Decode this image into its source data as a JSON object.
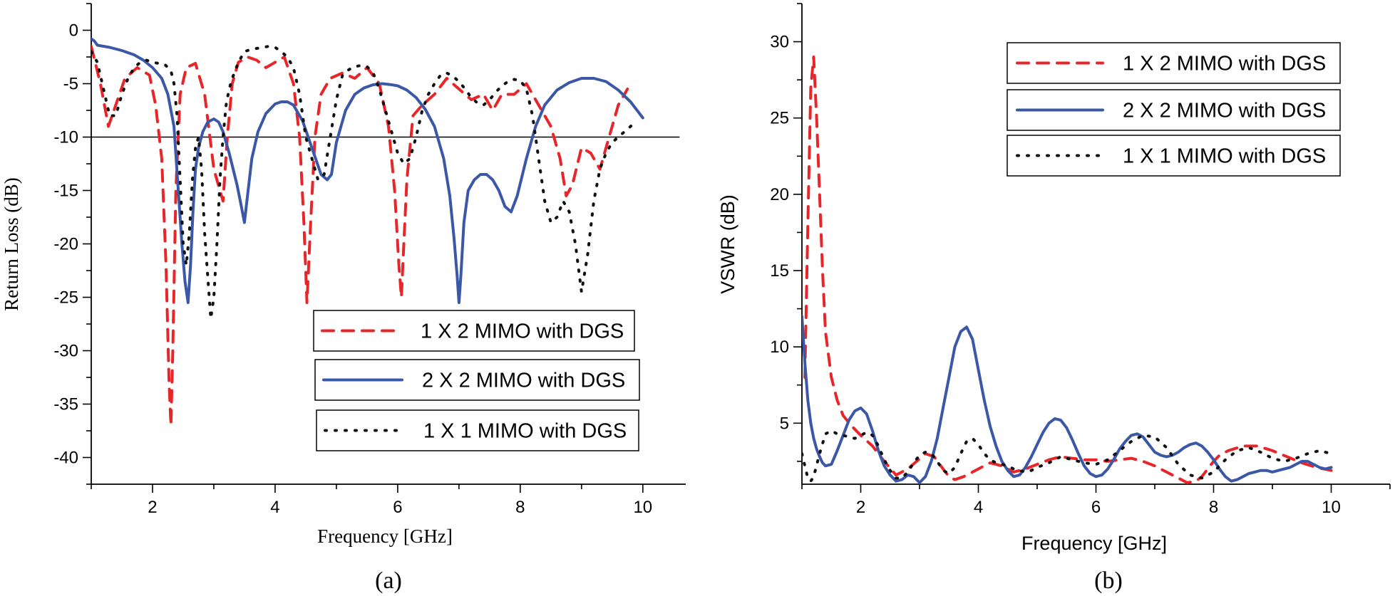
{
  "chart_data": [
    {
      "type": "line",
      "panel_label": "(a)",
      "title": "",
      "xlabel": "Frequency [GHz]",
      "ylabel": "Return Loss (dB)",
      "xlim": [
        1,
        10.7
      ],
      "ylim": [
        -42.5,
        2.5
      ],
      "xticks": [
        2,
        4,
        6,
        8,
        10
      ],
      "yticks": [
        0,
        -5,
        -10,
        -15,
        -20,
        -25,
        -30,
        -35,
        -40
      ],
      "xtick_labels": [
        "2",
        "4",
        "6",
        "8",
        "10"
      ],
      "ytick_labels": [
        "0",
        "-5",
        "-10",
        "-15",
        "-20",
        "-25",
        "-30",
        "-35",
        "-40"
      ],
      "grid": false,
      "legend_position": "bottom-right",
      "reference_line": {
        "y": -10,
        "x": [
          1,
          10.6
        ]
      },
      "series": [
        {
          "name": "1 X 2 MIMO with DGS",
          "style": "dashed",
          "color": "#e8262a",
          "x": [
            1.0,
            1.15,
            1.28,
            1.4,
            1.55,
            1.75,
            1.95,
            2.05,
            2.15,
            2.22,
            2.27,
            2.3,
            2.33,
            2.38,
            2.45,
            2.55,
            2.7,
            2.85,
            3.0,
            3.15,
            3.22,
            3.3,
            3.4,
            3.55,
            3.7,
            3.85,
            4.0,
            4.15,
            4.3,
            4.4,
            4.47,
            4.52,
            4.58,
            4.65,
            4.75,
            4.9,
            5.1,
            5.3,
            5.5,
            5.7,
            5.85,
            5.95,
            6.02,
            6.06,
            6.1,
            6.15,
            6.25,
            6.4,
            6.6,
            6.8,
            7.0,
            7.2,
            7.4,
            7.55,
            7.7,
            7.9,
            8.1,
            8.3,
            8.5,
            8.65,
            8.75,
            8.85,
            9.0,
            9.15,
            9.3,
            9.45,
            9.6,
            9.75
          ],
          "y": [
            -1.5,
            -5,
            -9,
            -7,
            -4.5,
            -3.5,
            -4.2,
            -7,
            -12,
            -22,
            -33,
            -37,
            -30,
            -15,
            -6,
            -3.5,
            -3.1,
            -6,
            -13,
            -16,
            -10,
            -5,
            -3,
            -2.5,
            -2.8,
            -3.5,
            -3,
            -2.5,
            -5,
            -10,
            -18,
            -25.5,
            -18,
            -10,
            -6,
            -4.5,
            -4,
            -4.5,
            -3.5,
            -5,
            -9,
            -15,
            -22,
            -25,
            -20,
            -14,
            -8,
            -7,
            -6,
            -4.5,
            -5.5,
            -6.5,
            -6,
            -7.5,
            -6,
            -6,
            -5,
            -7,
            -9,
            -12,
            -15.5,
            -14.5,
            -11,
            -11.5,
            -13,
            -10,
            -7,
            -5.5
          ]
        },
        {
          "name": "2 X 2 MIMO with DGS",
          "style": "solid",
          "color": "#3b58a8",
          "x": [
            1.0,
            1.05,
            1.1,
            1.3,
            1.5,
            1.7,
            1.85,
            2.0,
            2.15,
            2.25,
            2.35,
            2.42,
            2.48,
            2.53,
            2.58,
            2.62,
            2.66,
            2.7,
            2.75,
            2.82,
            2.9,
            3.0,
            3.08,
            3.15,
            3.25,
            3.38,
            3.45,
            3.5,
            3.55,
            3.62,
            3.72,
            3.85,
            4.0,
            4.1,
            4.2,
            4.3,
            4.45,
            4.6,
            4.75,
            4.85,
            4.92,
            5.0,
            5.15,
            5.3,
            5.45,
            5.6,
            5.75,
            5.9,
            6.0,
            6.15,
            6.3,
            6.45,
            6.6,
            6.75,
            6.85,
            6.92,
            6.97,
            7.0,
            7.03,
            7.08,
            7.15,
            7.25,
            7.35,
            7.45,
            7.55,
            7.65,
            7.75,
            7.85,
            7.95,
            8.1,
            8.25,
            8.4,
            8.6,
            8.8,
            9.0,
            9.2,
            9.4,
            9.6,
            9.8,
            10.0
          ],
          "y": [
            -0.8,
            -1,
            -1.4,
            -1.6,
            -1.9,
            -2.3,
            -2.8,
            -3.5,
            -4.5,
            -6,
            -9,
            -15,
            -20,
            -23.5,
            -25.5,
            -22,
            -17,
            -13,
            -11,
            -9.5,
            -8.6,
            -8.3,
            -8.6,
            -9.5,
            -11.5,
            -14.5,
            -16.5,
            -18,
            -15.5,
            -12,
            -9.5,
            -7.8,
            -6.9,
            -6.7,
            -6.7,
            -7,
            -8.5,
            -11,
            -13.5,
            -14,
            -13.5,
            -10.5,
            -7.5,
            -6,
            -5.4,
            -5.1,
            -5,
            -5.1,
            -5.2,
            -5.6,
            -6.3,
            -7.4,
            -9,
            -12,
            -15.5,
            -19.5,
            -23,
            -25.5,
            -23,
            -18,
            -15,
            -14,
            -13.5,
            -13.5,
            -14,
            -15,
            -16.5,
            -17,
            -15.5,
            -12,
            -9,
            -7,
            -5.6,
            -4.9,
            -4.5,
            -4.5,
            -4.8,
            -5.6,
            -6.7,
            -8.2
          ]
        },
        {
          "name": "1 X 1 MIMO with DGS",
          "style": "dotted",
          "color": "#111111",
          "x": [
            1.0,
            1.1,
            1.2,
            1.3,
            1.4,
            1.5,
            1.6,
            1.7,
            1.8,
            1.9,
            2.0,
            2.1,
            2.2,
            2.3,
            2.35,
            2.4,
            2.45,
            2.5,
            2.55,
            2.6,
            2.65,
            2.7,
            2.75,
            2.8,
            2.85,
            2.9,
            2.95,
            3.0,
            3.05,
            3.1,
            3.15,
            3.2,
            3.25,
            3.3,
            3.4,
            3.5,
            3.6,
            3.7,
            3.8,
            3.9,
            4.0,
            4.1,
            4.2,
            4.3,
            4.4,
            4.5,
            4.6,
            4.7,
            4.8,
            4.9,
            5.0,
            5.1,
            5.2,
            5.3,
            5.4,
            5.5,
            5.6,
            5.7,
            5.8,
            5.9,
            6.0,
            6.1,
            6.2,
            6.3,
            6.4,
            6.5,
            6.6,
            6.7,
            6.8,
            6.9,
            7.0,
            7.1,
            7.2,
            7.3,
            7.4,
            7.5,
            7.6,
            7.7,
            7.8,
            7.9,
            8.0,
            8.1,
            8.2,
            8.3,
            8.4,
            8.5,
            8.6,
            8.7,
            8.8,
            8.9,
            9.0,
            9.1,
            9.2,
            9.3,
            9.4,
            9.5,
            9.6,
            9.7,
            9.8,
            9.9
          ],
          "y": [
            -2,
            -3,
            -5.5,
            -8,
            -8,
            -6,
            -4.5,
            -3.5,
            -3,
            -2.8,
            -3,
            -3.1,
            -3.2,
            -3.8,
            -5,
            -8,
            -14,
            -20,
            -22,
            -19,
            -14,
            -11,
            -10,
            -13,
            -19,
            -23,
            -27,
            -25,
            -20,
            -14,
            -10,
            -7,
            -5.5,
            -4.5,
            -3,
            -2,
            -1.8,
            -1.7,
            -1.6,
            -1.5,
            -1.6,
            -2,
            -2.5,
            -3.5,
            -6,
            -10,
            -12,
            -14,
            -13.5,
            -10,
            -6.5,
            -4.2,
            -3.7,
            -3.4,
            -3.3,
            -3.4,
            -4,
            -5.5,
            -7.5,
            -9.5,
            -11.5,
            -12.5,
            -12,
            -10,
            -7.5,
            -6,
            -5,
            -4.2,
            -4,
            -4.3,
            -4.8,
            -5.5,
            -6.3,
            -6.8,
            -7,
            -6.5,
            -5.8,
            -5.2,
            -4.8,
            -4.6,
            -4.7,
            -5.5,
            -8,
            -12,
            -16,
            -18,
            -17.5,
            -16,
            -17,
            -20,
            -24.5,
            -21,
            -16,
            -13,
            -11.5,
            -10.5,
            -10,
            -9.5,
            -9,
            -8.5
          ]
        }
      ]
    },
    {
      "type": "line",
      "panel_label": "(b)",
      "title": "",
      "xlabel": "Frequency [GHz]",
      "ylabel": "VSWR (dB)",
      "xlim": [
        1,
        11
      ],
      "ylim": [
        1,
        32.5
      ],
      "xticks": [
        2,
        4,
        6,
        8,
        10
      ],
      "yticks": [
        5,
        10,
        15,
        20,
        25,
        30
      ],
      "xtick_labels": [
        "2",
        "4",
        "6",
        "8",
        "10"
      ],
      "ytick_labels": [
        "5",
        "10",
        "15",
        "20",
        "25",
        "30"
      ],
      "grid": false,
      "legend_position": "top-right",
      "series": [
        {
          "name": "1 X 2 MIMO with DGS",
          "style": "dashed",
          "color": "#e8262a",
          "x": [
            1.05,
            1.1,
            1.15,
            1.2,
            1.25,
            1.3,
            1.35,
            1.4,
            1.5,
            1.6,
            1.7,
            1.85,
            2.0,
            2.2,
            2.4,
            2.6,
            2.8,
            2.95,
            3.1,
            3.25,
            3.4,
            3.5,
            3.6,
            3.75,
            3.9,
            4.05,
            4.2,
            4.4,
            4.6,
            4.8,
            5.0,
            5.2,
            5.4,
            5.6,
            5.8,
            6.0,
            6.2,
            6.4,
            6.6,
            6.8,
            7.0,
            7.2,
            7.4,
            7.55,
            7.7,
            7.8,
            7.9,
            8.0,
            8.1,
            8.25,
            8.5,
            8.75,
            9.0,
            9.25,
            9.5,
            9.75,
            10.0
          ],
          "y": [
            8,
            18,
            27,
            29,
            25,
            20,
            15,
            11,
            8,
            6.5,
            5.5,
            4.8,
            4.2,
            3.5,
            2.5,
            1.6,
            2,
            2.5,
            3,
            2.8,
            2,
            1.5,
            1.3,
            1.5,
            1.8,
            2.1,
            2.4,
            2.2,
            1.8,
            2,
            2.3,
            2.6,
            2.8,
            2.7,
            2.6,
            2.6,
            2.5,
            2.6,
            2.7,
            2.5,
            2.2,
            1.8,
            1.4,
            1.1,
            1.2,
            1.5,
            2,
            2.5,
            2.9,
            3.2,
            3.5,
            3.5,
            3.2,
            2.8,
            2.4,
            2.1,
            1.9
          ]
        },
        {
          "name": "2 X 2 MIMO with DGS",
          "style": "solid",
          "color": "#3b58a8",
          "x": [
            1.0,
            1.05,
            1.1,
            1.15,
            1.2,
            1.25,
            1.3,
            1.35,
            1.4,
            1.5,
            1.6,
            1.7,
            1.8,
            1.9,
            2.0,
            2.1,
            2.2,
            2.3,
            2.4,
            2.5,
            2.6,
            2.7,
            2.8,
            2.9,
            3.0,
            3.1,
            3.2,
            3.3,
            3.4,
            3.5,
            3.6,
            3.7,
            3.8,
            3.9,
            4.0,
            4.1,
            4.2,
            4.3,
            4.4,
            4.5,
            4.6,
            4.7,
            4.8,
            4.9,
            5.0,
            5.1,
            5.2,
            5.3,
            5.4,
            5.5,
            5.6,
            5.7,
            5.8,
            5.9,
            6.0,
            6.1,
            6.2,
            6.3,
            6.4,
            6.5,
            6.6,
            6.7,
            6.8,
            6.9,
            7.0,
            7.1,
            7.2,
            7.3,
            7.4,
            7.5,
            7.6,
            7.7,
            7.8,
            7.9,
            8.0,
            8.1,
            8.2,
            8.3,
            8.4,
            8.5,
            8.6,
            8.7,
            8.8,
            8.9,
            9.0,
            9.1,
            9.2,
            9.3,
            9.4,
            9.5,
            9.6,
            9.7,
            9.8,
            9.9,
            10.0
          ],
          "y": [
            12,
            9,
            6.5,
            5,
            4,
            3.3,
            2.8,
            2.4,
            2.2,
            2.3,
            3.2,
            4.2,
            5.2,
            5.8,
            6,
            5.6,
            4.5,
            3.2,
            2.2,
            1.6,
            1.2,
            1.3,
            1.6,
            1.5,
            1.1,
            1.5,
            2.5,
            4,
            6,
            8,
            10,
            11,
            11.3,
            10.5,
            8.5,
            6.5,
            4.8,
            3.5,
            2.5,
            1.9,
            1.5,
            1.6,
            2.1,
            2.8,
            3.6,
            4.4,
            5,
            5.3,
            5.2,
            4.7,
            3.9,
            3,
            2.2,
            1.7,
            1.5,
            1.6,
            2,
            2.6,
            3.3,
            3.8,
            4.2,
            4.3,
            4.1,
            3.6,
            3.1,
            2.9,
            2.8,
            2.9,
            3.1,
            3.4,
            3.6,
            3.7,
            3.5,
            3.1,
            2.6,
            2,
            1.5,
            1.2,
            1.3,
            1.5,
            1.7,
            1.8,
            1.9,
            1.9,
            1.8,
            1.9,
            2.0,
            2.1,
            2.3,
            2.5,
            2.5,
            2.3,
            2.1,
            2.0,
            2.1
          ]
        },
        {
          "name": "1 X 1 MIMO with DGS",
          "style": "dotted",
          "color": "#111111",
          "x": [
            1.0,
            1.05,
            1.1,
            1.15,
            1.2,
            1.3,
            1.4,
            1.5,
            1.6,
            1.7,
            1.8,
            1.9,
            2.0,
            2.1,
            2.2,
            2.3,
            2.4,
            2.5,
            2.6,
            2.7,
            2.8,
            2.9,
            3.0,
            3.1,
            3.2,
            3.3,
            3.4,
            3.5,
            3.6,
            3.7,
            3.8,
            3.9,
            4.0,
            4.1,
            4.2,
            4.3,
            4.4,
            4.5,
            4.6,
            4.7,
            4.8,
            4.9,
            5.0,
            5.2,
            5.4,
            5.6,
            5.8,
            6.0,
            6.2,
            6.4,
            6.6,
            6.8,
            7.0,
            7.2,
            7.4,
            7.6,
            7.8,
            8.0,
            8.2,
            8.4,
            8.6,
            8.8,
            9.0,
            9.2,
            9.4,
            9.6,
            9.8,
            10.0
          ],
          "y": [
            3,
            2.2,
            1.4,
            1.2,
            1.5,
            3,
            4.3,
            4.5,
            4.3,
            4.2,
            4.1,
            4,
            4.2,
            4.4,
            4.2,
            3.5,
            2.6,
            1.9,
            1.4,
            1.4,
            1.8,
            2.4,
            2.9,
            3.1,
            3,
            2.5,
            1.9,
            1.7,
            2.1,
            3,
            3.8,
            4,
            3.6,
            3,
            2.6,
            2.4,
            2.3,
            2.2,
            2,
            1.9,
            1.8,
            1.9,
            2.1,
            2.4,
            2.8,
            2.6,
            2.4,
            2.3,
            2.6,
            3.2,
            3.8,
            4.2,
            4.1,
            3.4,
            2.3,
            1.6,
            1.4,
            1.8,
            2.6,
            3.2,
            3.4,
            3.1,
            2.7,
            2.5,
            2.7,
            3,
            3.2,
            3
          ]
        }
      ]
    }
  ]
}
